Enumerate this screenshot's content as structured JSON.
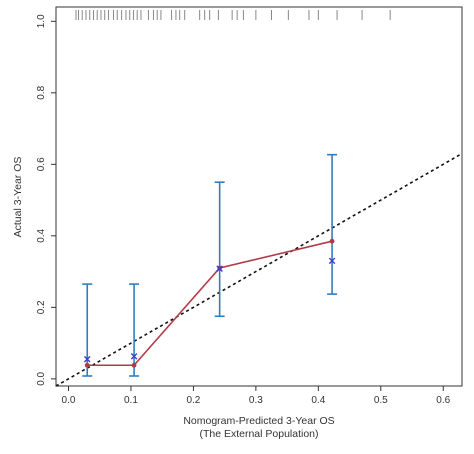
{
  "chart_data": {
    "type": "line",
    "title": "",
    "xlabel": "Nomogram-Predicted 3-Year OS",
    "xlabel_sub": "(The External Population)",
    "ylabel": "Actual 3-Year OS",
    "xlim": [
      -0.02,
      0.63
    ],
    "ylim": [
      -0.02,
      1.04
    ],
    "x_ticks": [
      0.0,
      0.1,
      0.2,
      0.3,
      0.4,
      0.5,
      0.6
    ],
    "x_tick_labels": [
      "0.0",
      "0.1",
      "0.2",
      "0.3",
      "0.4",
      "0.5",
      "0.6"
    ],
    "y_ticks": [
      0.0,
      0.2,
      0.4,
      0.6,
      0.8,
      1.0
    ],
    "y_tick_labels": [
      "0.0",
      "0.2",
      "0.4",
      "0.6",
      "0.8",
      "1.0"
    ],
    "grid": false,
    "series": [
      {
        "role": "observed",
        "x": [
          0.03,
          0.105,
          0.242,
          0.422
        ],
        "y": [
          0.038,
          0.038,
          0.31,
          0.385
        ],
        "color": "#b23a48"
      },
      {
        "role": "corrected",
        "x": [
          0.03,
          0.105,
          0.242,
          0.422
        ],
        "y": [
          0.055,
          0.063,
          0.308,
          0.33
        ],
        "marker": "x",
        "color": "#3a3fd0"
      }
    ],
    "error_bars": {
      "color": "#2f7fc0",
      "x": [
        0.03,
        0.105,
        0.242,
        0.422
      ],
      "lower": [
        0.008,
        0.008,
        0.175,
        0.237
      ],
      "upper": [
        0.265,
        0.265,
        0.55,
        0.627
      ]
    },
    "reference_line": {
      "style": "dashed",
      "color": "#111111",
      "intercept": 0.0,
      "slope": 1.0
    },
    "rug": {
      "position": "top",
      "color": "#888888",
      "x": [
        0.012,
        0.016,
        0.022,
        0.028,
        0.034,
        0.04,
        0.046,
        0.052,
        0.058,
        0.064,
        0.072,
        0.078,
        0.085,
        0.092,
        0.098,
        0.104,
        0.11,
        0.116,
        0.128,
        0.136,
        0.142,
        0.148,
        0.165,
        0.172,
        0.178,
        0.186,
        0.21,
        0.218,
        0.226,
        0.24,
        0.262,
        0.27,
        0.28,
        0.3,
        0.325,
        0.352,
        0.385,
        0.4,
        0.43,
        0.47,
        0.515
      ]
    }
  }
}
